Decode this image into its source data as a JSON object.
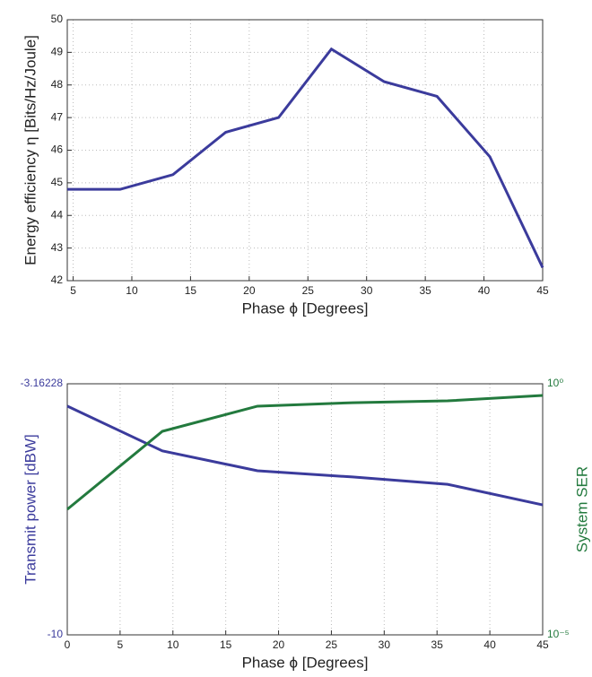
{
  "chart_data": [
    {
      "type": "line",
      "x": [
        4.5,
        9,
        13.5,
        18,
        22.5,
        27,
        31.5,
        36,
        40.5,
        45
      ],
      "series": [
        {
          "name": "Energy efficiency",
          "color": "#3b3b9c",
          "values": [
            44.8,
            44.8,
            45.25,
            46.55,
            47.0,
            49.1,
            48.1,
            47.65,
            45.8,
            42.4
          ]
        }
      ],
      "xlabel": "Phase ϕ [Degrees]",
      "ylabel": "Energy efficiency η [Bits/Hz/Joule]",
      "xlim": [
        4.5,
        45
      ],
      "xticks": [
        5,
        10,
        15,
        20,
        25,
        30,
        35,
        40,
        45
      ],
      "ylim": [
        42,
        50
      ],
      "yticks": [
        42,
        43,
        44,
        45,
        46,
        47,
        48,
        49,
        50
      ],
      "grid": true
    },
    {
      "type": "line",
      "x": [
        0,
        9,
        18,
        27,
        36,
        45
      ],
      "series": [
        {
          "name": "Transmit power",
          "color": "#3b3b9c",
          "values": [
            -3.77,
            -4.99,
            -5.53,
            -5.7,
            -5.9,
            -6.46
          ]
        },
        {
          "name": "System SER",
          "color": "#237a3e",
          "axis": "y2",
          "values": [
            0.00316,
            0.113,
            0.358,
            0.42,
            0.457,
            0.586
          ]
        }
      ],
      "xlabel": "Phase ϕ [Degrees]",
      "ylabel": "Transmit power [dBW]",
      "y2label": "System SER",
      "xlim": [
        0,
        45
      ],
      "xticks": [
        0,
        5,
        10,
        15,
        20,
        25,
        30,
        35,
        40,
        45
      ],
      "ylim": [
        -10,
        -3.16228
      ],
      "yticks": [
        -10,
        -3.16228
      ],
      "y2lim": [
        1e-05,
        1
      ],
      "y2log": true,
      "y2ticks": [
        {
          "value": 1e-05,
          "label": "10⁻⁵"
        },
        {
          "value": 1,
          "label": "10⁰"
        }
      ],
      "grid": true
    }
  ]
}
